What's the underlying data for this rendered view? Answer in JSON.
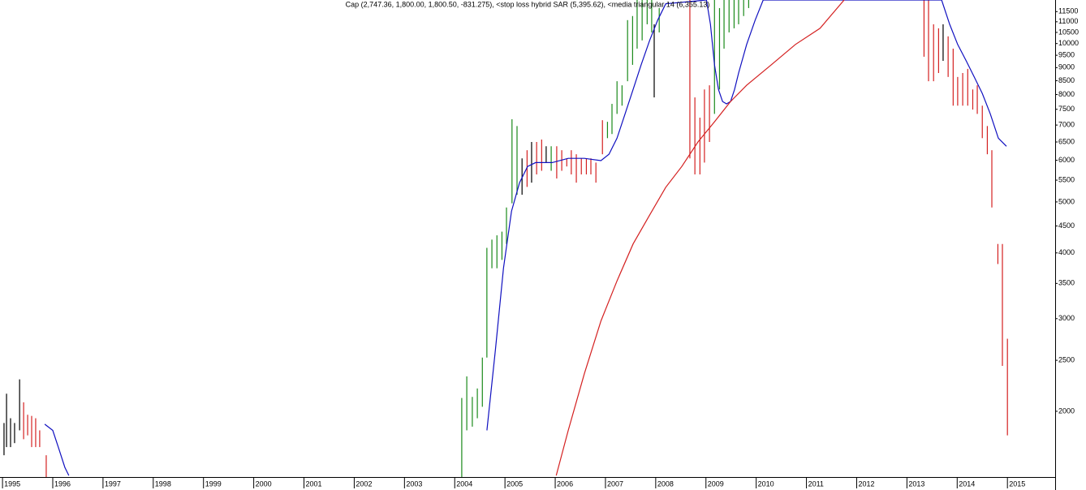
{
  "chart_data": {
    "type": "ohlc",
    "title": "Cap (2,747.36, 1,800.00, 1,800.50, -831.275), <stop loss hybrid SAR (5,395.62), <media triangular 14 (6,355.13)",
    "log_scale": true,
    "ylim": [
      1500,
      12100
    ],
    "yticks": [
      2000,
      2500,
      3000,
      3500,
      4000,
      4500,
      5000,
      5500,
      6000,
      6500,
      7000,
      7500,
      8000,
      8500,
      9000,
      9500,
      10000,
      10500,
      11000,
      11500
    ],
    "xlim": [
      1994.95,
      2015.95
    ],
    "xticks": [
      1995,
      1996,
      1997,
      1998,
      1999,
      2000,
      2001,
      2002,
      2003,
      2004,
      2005,
      2006,
      2007,
      2008,
      2009,
      2010,
      2011,
      2012,
      2013,
      2014,
      2015
    ],
    "bars": [
      {
        "x": 1995.03,
        "high": 1900,
        "low": 1650,
        "color": "#000000"
      },
      {
        "x": 1995.08,
        "high": 2160,
        "low": 1710,
        "color": "#000000"
      },
      {
        "x": 1995.16,
        "high": 1940,
        "low": 1710,
        "color": "#000000"
      },
      {
        "x": 1995.24,
        "high": 1900,
        "low": 1740,
        "color": "#000000"
      },
      {
        "x": 1995.34,
        "high": 2300,
        "low": 1840,
        "color": "#000000"
      },
      {
        "x": 1995.42,
        "high": 2080,
        "low": 1770,
        "color": "#d42020"
      },
      {
        "x": 1995.5,
        "high": 1970,
        "low": 1800,
        "color": "#d42020"
      },
      {
        "x": 1995.58,
        "high": 1960,
        "low": 1710,
        "color": "#d42020"
      },
      {
        "x": 1995.66,
        "high": 1940,
        "low": 1710,
        "color": "#d42020"
      },
      {
        "x": 1995.74,
        "high": 1840,
        "low": 1710,
        "color": "#d42020"
      },
      {
        "x": 1995.87,
        "high": 1650,
        "low": 1500,
        "color": "#d42020"
      },
      {
        "x": 2004.14,
        "high": 2120,
        "low": 1500,
        "color": "#1a8a1a"
      },
      {
        "x": 2004.24,
        "high": 2330,
        "low": 1840,
        "color": "#1a8a1a"
      },
      {
        "x": 2004.35,
        "high": 2130,
        "low": 1870,
        "color": "#1a8a1a"
      },
      {
        "x": 2004.45,
        "high": 2210,
        "low": 1940,
        "color": "#1a8a1a"
      },
      {
        "x": 2004.55,
        "high": 2530,
        "low": 2040,
        "color": "#1a8a1a"
      },
      {
        "x": 2004.64,
        "high": 4090,
        "low": 2530,
        "color": "#1a8a1a"
      },
      {
        "x": 2004.74,
        "high": 4240,
        "low": 3740,
        "color": "#1a8a1a"
      },
      {
        "x": 2004.84,
        "high": 4320,
        "low": 3740,
        "color": "#1a8a1a"
      },
      {
        "x": 2004.94,
        "high": 4390,
        "low": 3880,
        "color": "#1a8a1a"
      },
      {
        "x": 2005.03,
        "high": 4880,
        "low": 4160,
        "color": "#1a8a1a"
      },
      {
        "x": 2005.14,
        "high": 7180,
        "low": 4970,
        "color": "#1a8a1a"
      },
      {
        "x": 2005.24,
        "high": 6970,
        "low": 5160,
        "color": "#1a8a1a"
      },
      {
        "x": 2005.34,
        "high": 6050,
        "low": 5160,
        "color": "#000000"
      },
      {
        "x": 2005.44,
        "high": 6270,
        "low": 5340,
        "color": "#d42020"
      },
      {
        "x": 2005.53,
        "high": 6500,
        "low": 5440,
        "color": "#000000"
      },
      {
        "x": 2005.63,
        "high": 6500,
        "low": 5640,
        "color": "#d42020"
      },
      {
        "x": 2005.73,
        "high": 6570,
        "low": 5730,
        "color": "#d42020"
      },
      {
        "x": 2005.82,
        "high": 6380,
        "low": 5940,
        "color": "#000000"
      },
      {
        "x": 2005.92,
        "high": 6380,
        "low": 5730,
        "color": "#1a8a1a"
      },
      {
        "x": 2006.03,
        "high": 6380,
        "low": 5540,
        "color": "#d42020"
      },
      {
        "x": 2006.13,
        "high": 6270,
        "low": 5730,
        "color": "#d42020"
      },
      {
        "x": 2006.23,
        "high": 6050,
        "low": 5840,
        "color": "#d42020"
      },
      {
        "x": 2006.32,
        "high": 6270,
        "low": 5640,
        "color": "#d42020"
      },
      {
        "x": 2006.42,
        "high": 6160,
        "low": 5440,
        "color": "#d42020"
      },
      {
        "x": 2006.52,
        "high": 6050,
        "low": 5640,
        "color": "#d42020"
      },
      {
        "x": 2006.62,
        "high": 6050,
        "low": 5640,
        "color": "#d42020"
      },
      {
        "x": 2006.71,
        "high": 6050,
        "low": 5640,
        "color": "#d42020"
      },
      {
        "x": 2006.81,
        "high": 5940,
        "low": 5440,
        "color": "#d42020"
      },
      {
        "x": 2006.94,
        "high": 7150,
        "low": 6160,
        "color": "#d42020"
      },
      {
        "x": 2007.04,
        "high": 7100,
        "low": 6610,
        "color": "#1a8a1a"
      },
      {
        "x": 2007.13,
        "high": 7680,
        "low": 6730,
        "color": "#1a8a1a"
      },
      {
        "x": 2007.23,
        "high": 8480,
        "low": 7350,
        "color": "#1a8a1a"
      },
      {
        "x": 2007.33,
        "high": 8330,
        "low": 7620,
        "color": "#1a8a1a"
      },
      {
        "x": 2007.44,
        "high": 11080,
        "low": 8480,
        "color": "#1a8a1a"
      },
      {
        "x": 2007.54,
        "high": 11280,
        "low": 9110,
        "color": "#1a8a1a"
      },
      {
        "x": 2007.63,
        "high": 12500,
        "low": 9780,
        "color": "#1a8a1a"
      },
      {
        "x": 2007.73,
        "high": 12500,
        "low": 10140,
        "color": "#1a8a1a"
      },
      {
        "x": 2007.83,
        "high": 12500,
        "low": 10880,
        "color": "#1a8a1a"
      },
      {
        "x": 2007.92,
        "high": 12500,
        "low": 10500,
        "color": "#1a8a1a"
      },
      {
        "x": 2007.97,
        "high": 10880,
        "low": 7900,
        "color": "#000000"
      },
      {
        "x": 2008.07,
        "high": 11680,
        "low": 10500,
        "color": "#1a8a1a"
      },
      {
        "x": 2008.68,
        "high": 12500,
        "low": 6050,
        "color": "#d42020"
      },
      {
        "x": 2008.78,
        "high": 7900,
        "low": 5640,
        "color": "#d42020"
      },
      {
        "x": 2008.88,
        "high": 7230,
        "low": 5640,
        "color": "#d42020"
      },
      {
        "x": 2008.97,
        "high": 8180,
        "low": 5940,
        "color": "#d42020"
      },
      {
        "x": 2009.07,
        "high": 8330,
        "low": 6500,
        "color": "#d42020"
      },
      {
        "x": 2009.17,
        "high": 12500,
        "low": 7350,
        "color": "#1a8a1a"
      },
      {
        "x": 2009.27,
        "high": 11680,
        "low": 8180,
        "color": "#1a8a1a"
      },
      {
        "x": 2009.36,
        "high": 12500,
        "low": 9780,
        "color": "#1a8a1a"
      },
      {
        "x": 2009.46,
        "high": 12500,
        "low": 10500,
        "color": "#1a8a1a"
      },
      {
        "x": 2009.56,
        "high": 12500,
        "low": 10690,
        "color": "#1a8a1a"
      },
      {
        "x": 2009.65,
        "high": 12500,
        "low": 10880,
        "color": "#1a8a1a"
      },
      {
        "x": 2009.75,
        "high": 12500,
        "low": 11280,
        "color": "#1a8a1a"
      },
      {
        "x": 2009.85,
        "high": 12500,
        "low": 11680,
        "color": "#1a8a1a"
      },
      {
        "x": 2013.34,
        "high": 12500,
        "low": 9440,
        "color": "#d42020"
      },
      {
        "x": 2013.43,
        "high": 12500,
        "low": 8480,
        "color": "#d42020"
      },
      {
        "x": 2013.53,
        "high": 10880,
        "low": 8480,
        "color": "#d42020"
      },
      {
        "x": 2013.63,
        "high": 10690,
        "low": 8790,
        "color": "#d42020"
      },
      {
        "x": 2013.72,
        "high": 10880,
        "low": 9270,
        "color": "#000000"
      },
      {
        "x": 2013.82,
        "high": 10320,
        "low": 8640,
        "color": "#d42020"
      },
      {
        "x": 2013.92,
        "high": 9780,
        "low": 7620,
        "color": "#d42020"
      },
      {
        "x": 2014.01,
        "high": 8640,
        "low": 7620,
        "color": "#d42020"
      },
      {
        "x": 2014.11,
        "high": 8790,
        "low": 7620,
        "color": "#d42020"
      },
      {
        "x": 2014.21,
        "high": 8950,
        "low": 7620,
        "color": "#d42020"
      },
      {
        "x": 2014.31,
        "high": 8180,
        "low": 7490,
        "color": "#d42020"
      },
      {
        "x": 2014.4,
        "high": 8330,
        "low": 7350,
        "color": "#d42020"
      },
      {
        "x": 2014.5,
        "high": 7620,
        "low": 6610,
        "color": "#d42020"
      },
      {
        "x": 2014.6,
        "high": 6970,
        "low": 6160,
        "color": "#d42020"
      },
      {
        "x": 2014.69,
        "high": 6270,
        "low": 4880,
        "color": "#d42020"
      },
      {
        "x": 2014.81,
        "high": 4160,
        "low": 3810,
        "color": "#d42020"
      },
      {
        "x": 2014.9,
        "high": 4160,
        "low": 2440,
        "color": "#d42020"
      },
      {
        "x": 2015.0,
        "high": 2747.36,
        "low": 1800,
        "color": "#d42020"
      }
    ],
    "series": [
      {
        "color": "#1010c0",
        "x": [
          1995.84,
          1996.0,
          1996.11,
          1996.24,
          1996.32,
          2004.48,
          2004.64,
          2004.81,
          2004.97,
          2005.13,
          2005.29,
          2005.45,
          2005.61,
          2005.94,
          2006.26,
          2006.58,
          2006.91,
          2007.07,
          2007.23,
          2007.39,
          2007.55,
          2007.71,
          2007.88,
          2008.04,
          2008.2,
          2009.01,
          2009.09,
          2009.17,
          2009.25,
          2009.33,
          2009.41,
          2009.49,
          2009.57,
          2009.65,
          2009.81,
          2009.98,
          2010.14,
          2013.69,
          2013.85,
          2014.01,
          2014.18,
          2014.34,
          2014.5,
          2014.66,
          2014.82,
          2014.98
        ],
        "values": [
          1890,
          1840,
          1710,
          1565,
          1510,
          null,
          1840,
          2620,
          3740,
          4800,
          5440,
          5840,
          5940,
          5940,
          6050,
          6050,
          5990,
          6160,
          6610,
          7350,
          8180,
          9110,
          10140,
          11080,
          11900,
          12100,
          10880,
          9110,
          8180,
          7760,
          7680,
          7760,
          8180,
          8790,
          9960,
          11080,
          12100,
          12100,
          10880,
          9960,
          9270,
          8640,
          8040,
          7350,
          6610,
          6380
        ]
      },
      {
        "color": "#d42020",
        "x": [
          2006.02,
          2006.26,
          2006.58,
          2006.91,
          2007.23,
          2007.55,
          2007.88,
          2008.2,
          2008.52,
          2008.84,
          2009.17,
          2009.49,
          2009.81,
          2010.3,
          2010.78,
          2011.27,
          2011.75
        ],
        "values": [
          1510,
          1840,
          2360,
          2970,
          3540,
          4160,
          4720,
          5330,
          5840,
          6500,
          7100,
          7760,
          8330,
          9110,
          9960,
          10690,
          12100
        ]
      }
    ]
  }
}
